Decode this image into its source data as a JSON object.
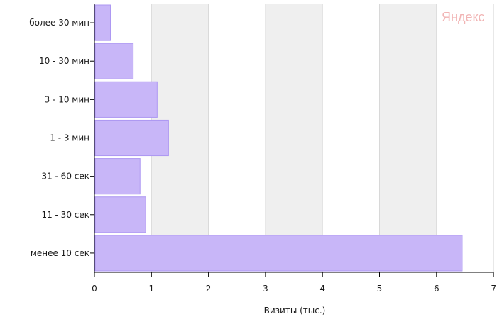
{
  "chart_data": {
    "type": "bar",
    "orientation": "horizontal",
    "categories": [
      "более 30 мин",
      "10 - 30 мин",
      "3 - 10 мин",
      "1 - 3 мин",
      "31 - 60 сек",
      "11 - 30 сек",
      "менее 10 сек"
    ],
    "values": [
      0.28,
      0.68,
      1.1,
      1.3,
      0.8,
      0.9,
      6.45
    ],
    "xlabel": "Визиты (тыс.)",
    "xlim": [
      0,
      7
    ],
    "xticks": [
      "0",
      "1",
      "2",
      "3",
      "4",
      "5",
      "6",
      "7"
    ],
    "grid": "vertical, alternating bands",
    "bar_color": "#c8b6f8",
    "bar_edge_color": "#ac97f2",
    "band_color": "#efefef",
    "watermark": "Яндекс"
  }
}
